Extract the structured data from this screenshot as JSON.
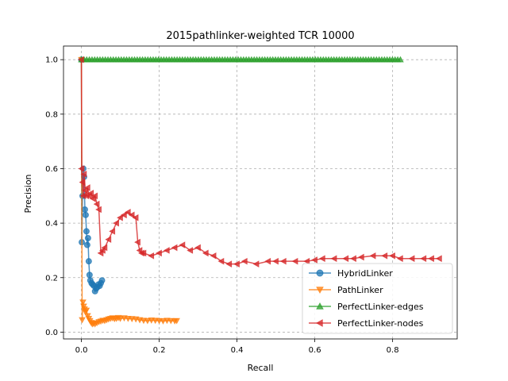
{
  "chart_data": {
    "type": "line",
    "title": "2015pathlinker-weighted TCR 10000",
    "xlabel": "Recall",
    "ylabel": "Precision",
    "xlim": [
      -0.046,
      0.966
    ],
    "ylim": [
      -0.025,
      1.05
    ],
    "xticks": [
      "0.0",
      "0.2",
      "0.4",
      "0.6",
      "0.8"
    ],
    "xtick_values": [
      0.0,
      0.2,
      0.4,
      0.6,
      0.8
    ],
    "yticks": [
      "0.0",
      "0.2",
      "0.4",
      "0.6",
      "0.8",
      "1.0"
    ],
    "ytick_values": [
      0.0,
      0.2,
      0.4,
      0.6,
      0.8,
      1.0
    ],
    "grid": true,
    "legend_position": "lower-right",
    "series": [
      {
        "name": "HybridLinker",
        "color": "#1f77b4",
        "marker": "circle",
        "x": [
          0.0,
          0.001,
          0.003,
          0.005,
          0.007,
          0.009,
          0.011,
          0.013,
          0.015,
          0.017,
          0.019,
          0.021,
          0.023,
          0.026,
          0.029,
          0.032,
          0.035,
          0.038,
          0.041,
          0.044,
          0.047,
          0.05,
          0.053
        ],
        "y": [
          1.0,
          0.33,
          0.5,
          0.6,
          0.57,
          0.45,
          0.43,
          0.37,
          0.32,
          0.345,
          0.26,
          0.21,
          0.19,
          0.18,
          0.175,
          0.17,
          0.15,
          0.16,
          0.165,
          0.175,
          0.17,
          0.18,
          0.19
        ]
      },
      {
        "name": "PathLinker",
        "color": "#ff7f0e",
        "marker": "triangle-down",
        "x": [
          0.0,
          0.002,
          0.004,
          0.006,
          0.008,
          0.01,
          0.013,
          0.016,
          0.019,
          0.022,
          0.025,
          0.028,
          0.031,
          0.035,
          0.04,
          0.045,
          0.05,
          0.055,
          0.06,
          0.065,
          0.07,
          0.075,
          0.08,
          0.085,
          0.09,
          0.095,
          0.1,
          0.11,
          0.12,
          0.13,
          0.14,
          0.15,
          0.16,
          0.17,
          0.18,
          0.19,
          0.2,
          0.21,
          0.22,
          0.23,
          0.24,
          0.245
        ],
        "y": [
          1.0,
          0.045,
          0.11,
          0.095,
          0.085,
          0.075,
          0.08,
          0.06,
          0.05,
          0.042,
          0.035,
          0.03,
          0.032,
          0.03,
          0.034,
          0.038,
          0.04,
          0.043,
          0.042,
          0.045,
          0.048,
          0.05,
          0.052,
          0.049,
          0.05,
          0.053,
          0.05,
          0.052,
          0.05,
          0.049,
          0.048,
          0.045,
          0.043,
          0.042,
          0.044,
          0.043,
          0.042,
          0.041,
          0.043,
          0.042,
          0.041,
          0.042
        ]
      },
      {
        "name": "PerfectLinker-edges",
        "color": "#2ca02c",
        "marker": "triangle-up",
        "x": [
          0.0,
          0.82
        ],
        "y": [
          1.0,
          1.0
        ]
      },
      {
        "name": "PerfectLinker-nodes",
        "color": "#d62728",
        "marker": "triangle-left",
        "x": [
          0.0,
          0.001,
          0.003,
          0.005,
          0.007,
          0.01,
          0.013,
          0.016,
          0.02,
          0.025,
          0.03,
          0.035,
          0.04,
          0.045,
          0.05,
          0.055,
          0.06,
          0.07,
          0.08,
          0.09,
          0.1,
          0.11,
          0.12,
          0.13,
          0.14,
          0.145,
          0.15,
          0.155,
          0.16,
          0.18,
          0.2,
          0.22,
          0.24,
          0.26,
          0.28,
          0.3,
          0.32,
          0.34,
          0.36,
          0.38,
          0.4,
          0.42,
          0.45,
          0.48,
          0.5,
          0.52,
          0.55,
          0.58,
          0.6,
          0.62,
          0.65,
          0.68,
          0.7,
          0.72,
          0.75,
          0.78,
          0.8,
          0.82,
          0.85,
          0.88,
          0.9,
          0.92
        ],
        "y": [
          1.0,
          0.6,
          0.55,
          0.5,
          0.58,
          0.52,
          0.5,
          0.53,
          0.5,
          0.51,
          0.49,
          0.5,
          0.47,
          0.45,
          0.29,
          0.3,
          0.31,
          0.34,
          0.37,
          0.4,
          0.42,
          0.43,
          0.44,
          0.43,
          0.42,
          0.33,
          0.3,
          0.29,
          0.29,
          0.28,
          0.29,
          0.3,
          0.31,
          0.32,
          0.3,
          0.31,
          0.29,
          0.28,
          0.26,
          0.25,
          0.25,
          0.26,
          0.25,
          0.26,
          0.26,
          0.26,
          0.26,
          0.26,
          0.265,
          0.27,
          0.27,
          0.27,
          0.27,
          0.275,
          0.28,
          0.28,
          0.28,
          0.27,
          0.27,
          0.27,
          0.27,
          0.27
        ]
      }
    ]
  }
}
